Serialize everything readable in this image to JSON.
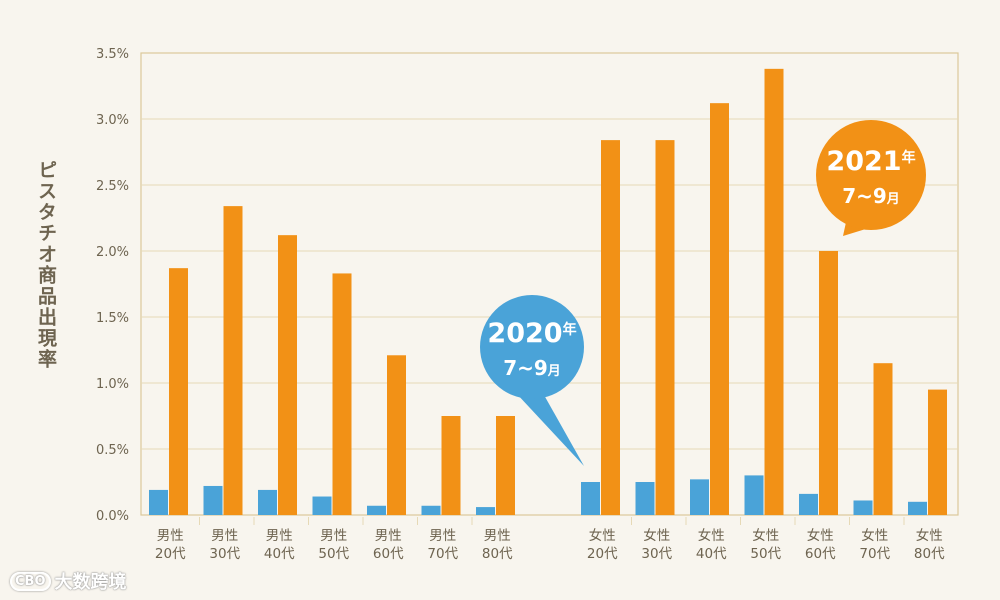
{
  "chart_data": {
    "type": "bar",
    "ylabel": "ピスタチオ商品出現率",
    "ylim": [
      0,
      3.5
    ],
    "yticks": [
      "0.0%",
      "0.5%",
      "1.0%",
      "1.5%",
      "2.0%",
      "2.5%",
      "3.0%",
      "3.5%"
    ],
    "grid": true,
    "groups": [
      {
        "categories": [
          [
            "男性",
            "20代"
          ],
          [
            "男性",
            "30代"
          ],
          [
            "男性",
            "40代"
          ],
          [
            "男性",
            "50代"
          ],
          [
            "男性",
            "60代"
          ],
          [
            "男性",
            "70代"
          ],
          [
            "男性",
            "80代"
          ]
        ]
      },
      {
        "categories": [
          [
            "女性",
            "20代"
          ],
          [
            "女性",
            "30代"
          ],
          [
            "女性",
            "40代"
          ],
          [
            "女性",
            "50代"
          ],
          [
            "女性",
            "60代"
          ],
          [
            "女性",
            "70代"
          ],
          [
            "女性",
            "80代"
          ]
        ]
      }
    ],
    "series": [
      {
        "name": "2020年 7~9月",
        "color": "#4aa3d8",
        "values": [
          0.19,
          0.22,
          0.19,
          0.14,
          0.07,
          0.07,
          0.06,
          0.25,
          0.25,
          0.27,
          0.3,
          0.16,
          0.11,
          0.1
        ]
      },
      {
        "name": "2021年 7~9月",
        "color": "#f29116",
        "values": [
          1.87,
          2.34,
          2.12,
          1.83,
          1.21,
          0.75,
          0.75,
          2.84,
          2.84,
          3.12,
          3.38,
          2.0,
          1.15,
          0.95
        ]
      }
    ],
    "callouts": [
      {
        "year": "2020",
        "year_suffix": "年",
        "month": "7~9",
        "month_suffix": "月",
        "color": "#4aa3d8",
        "points_to": "女性 20代"
      },
      {
        "year": "2021",
        "year_suffix": "年",
        "month": "7~9",
        "month_suffix": "月",
        "color": "#f29116",
        "points_to": "女性 60代"
      }
    ]
  },
  "style": {
    "background": "#f8f5ee",
    "frame_color": "#dcc99a",
    "grid_color": "#e6d9b6",
    "text_color": "#6e6450"
  },
  "watermark": {
    "logo": "CBO",
    "text": "大数跨境"
  }
}
